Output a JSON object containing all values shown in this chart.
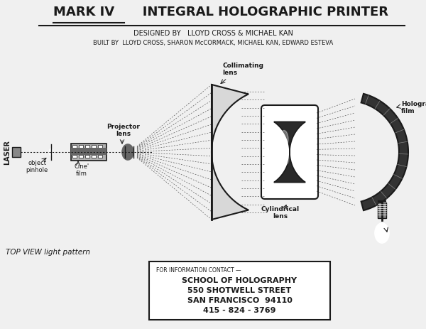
{
  "title_mark": "MARK IV",
  "title_rest": "   INTEGRAL HOLOGRAPHIC PRINTER",
  "subtitle1": "DESIGNED BY   LLOYD CROSS & MICHAEL KAN",
  "subtitle2": "BUILT BY  LLOYD CROSS, SHARON McCORMACK, MICHAEL KAN, EDWARD ESTEVA",
  "label_laser": "LASER",
  "label_object": "object\npinhole",
  "label_cine": "Cine'\nfilm",
  "label_projector": "Projector\nlens",
  "label_collimating": "Collimating\nlens",
  "label_cylindrical": "CyIindrical\nlens",
  "label_holographic": "Holographic\nfilm",
  "label_topview": "TOP VIEW light pattern",
  "contact_line1": "FOR INFORMATION CONTACT —",
  "contact_line2": "SCHOOL OF HOLOGRAPHY",
  "contact_line3": "550 SHOTWELL STREET",
  "contact_line4": "SAN FRANCISCO  94110",
  "contact_line5": "415 - 824 - 3769",
  "bg_color": "#f0f0f0",
  "fg_color": "#1a1a1a",
  "white": "#ffffff",
  "light_gray": "#d8d8d8",
  "dark_gray": "#444444",
  "mid_gray": "#888888"
}
